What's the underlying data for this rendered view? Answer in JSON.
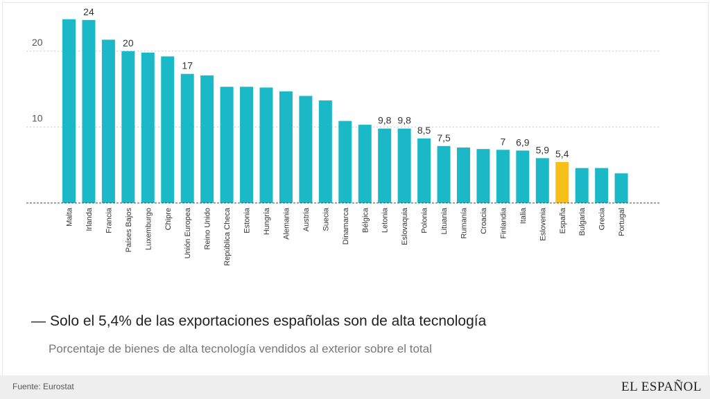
{
  "chart_data": {
    "type": "bar",
    "title": "Solo el 5,4% de las exportaciones españolas son de alta tecnología",
    "subtitle": "Porcentaje de bienes de alta tecnología vendidos al exterior sobre el total",
    "categories": [
      "Malta",
      "Irlanda",
      "Francia",
      "Países Bajos",
      "Luxemburgo",
      "Chipre",
      "Unión Europea",
      "Reino Unido",
      "República Checa",
      "Estonia",
      "Hungría",
      "Alemania",
      "Austria",
      "Suecia",
      "Dinamarca",
      "Bélgica",
      "Letonia",
      "Eslovaquia",
      "Polonia",
      "Lituania",
      "Rumanía",
      "Croacia",
      "Finlandia",
      "Italia",
      "Eslovenia",
      "España",
      "Bulgaria",
      "Grecia",
      "Portugal"
    ],
    "values": [
      24.2,
      24.1,
      21.5,
      20,
      19.8,
      19.3,
      17,
      16.8,
      15.3,
      15.3,
      15.2,
      14.7,
      14.1,
      13.5,
      10.8,
      10.3,
      9.8,
      9.8,
      8.5,
      7.5,
      7.3,
      7.1,
      7,
      6.9,
      5.9,
      5.4,
      4.6,
      4.6,
      3.9
    ],
    "data_labels": {
      "Irlanda": "24",
      "Países Bajos": "20",
      "Unión Europea": "17",
      "Letonia": "9,8",
      "Eslovaquia": "9,8",
      "Polonia": "8,5",
      "Lituania": "7,5",
      "Finlandia": "7",
      "Italia": "6,9",
      "Eslovenia": "5,9",
      "España": "5,4"
    },
    "y_ticks": [
      {
        "value": 10,
        "label": "10"
      },
      {
        "value": 20,
        "label": "20"
      }
    ],
    "ylim": [
      0,
      26
    ],
    "grid": true,
    "highlight": "España",
    "colors": {
      "bar": "#1bb9c8",
      "highlight": "#f7bf1a",
      "grid": "#cccccc",
      "axis": "#444444",
      "label": "#333333",
      "tick": "#555555"
    }
  },
  "footer": {
    "source": "Fuente: Eurostat",
    "brand": "EL ESPAÑOL"
  }
}
